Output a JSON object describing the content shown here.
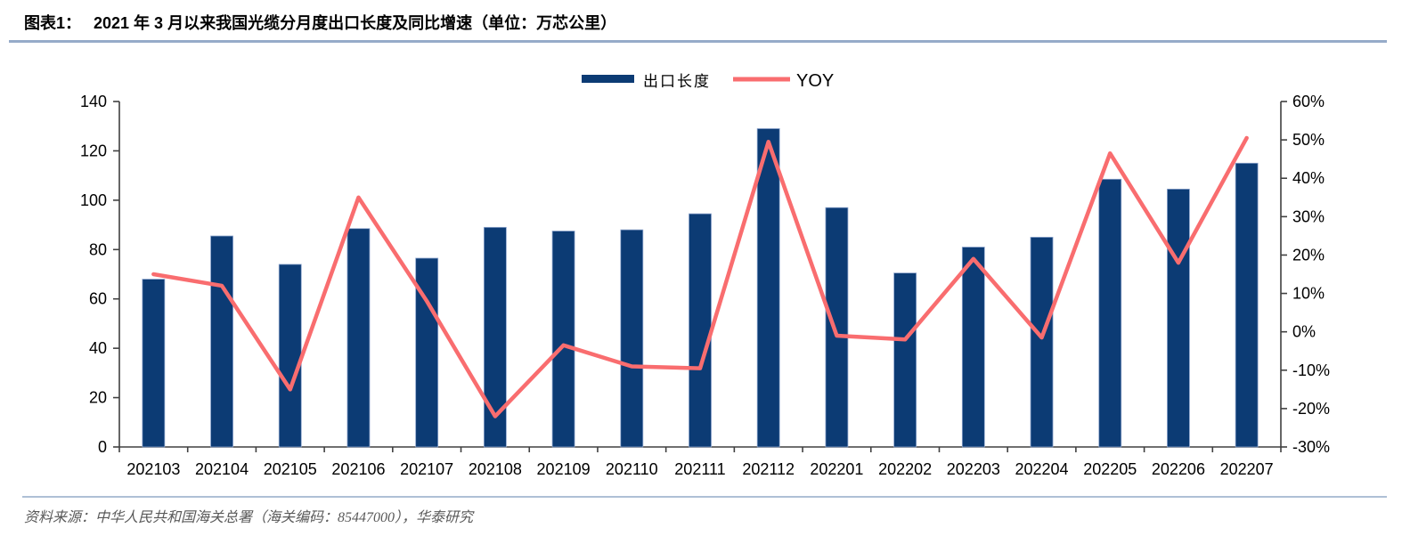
{
  "header": {
    "figure_label": "图表1：",
    "title": "2021 年 3 月以来我国光缆分月度出口长度及同比增速（单位：万芯公里）"
  },
  "footer": {
    "source": "资料来源：中华人民共和国海关总署（海关编码：85447000），华泰研究"
  },
  "chart_data": {
    "type": "combo-bar-line",
    "title": "2021 年 3 月以来我国光缆分月度出口长度及同比增速（单位：万芯公里）",
    "categories": [
      "202103",
      "202104",
      "202105",
      "202106",
      "202107",
      "202108",
      "202109",
      "202110",
      "202111",
      "202112",
      "202201",
      "202202",
      "202203",
      "202204",
      "202205",
      "202206",
      "202207"
    ],
    "series": [
      {
        "name": "出口长度",
        "type": "bar",
        "axis": "left",
        "color": "#0c3b74",
        "values": [
          68,
          85.5,
          74,
          88.5,
          76.5,
          89,
          87.5,
          88,
          94.5,
          129,
          97,
          70.5,
          81,
          85,
          108.5,
          104.5,
          115
        ]
      },
      {
        "name": "YOY",
        "type": "line",
        "axis": "right",
        "unit": "%",
        "color": "#f96d6f",
        "values": [
          15,
          12,
          -15,
          35,
          8,
          -22,
          -3.5,
          -9,
          -9.5,
          49.5,
          -1,
          -2,
          19,
          -1.5,
          46.5,
          18,
          50.5
        ]
      }
    ],
    "left_axis": {
      "min": 0,
      "max": 140,
      "step": 20,
      "tick_labels": [
        "0",
        "20",
        "40",
        "60",
        "80",
        "100",
        "120",
        "140"
      ]
    },
    "right_axis": {
      "min": -30,
      "max": 60,
      "step": 10,
      "tick_labels": [
        "-30%",
        "-20%",
        "-10%",
        "0%",
        "10%",
        "20%",
        "30%",
        "40%",
        "50%",
        "60%"
      ]
    },
    "legend_position": "top-center",
    "grid": false,
    "axis_color": "#404040",
    "label_color": "#000000"
  }
}
